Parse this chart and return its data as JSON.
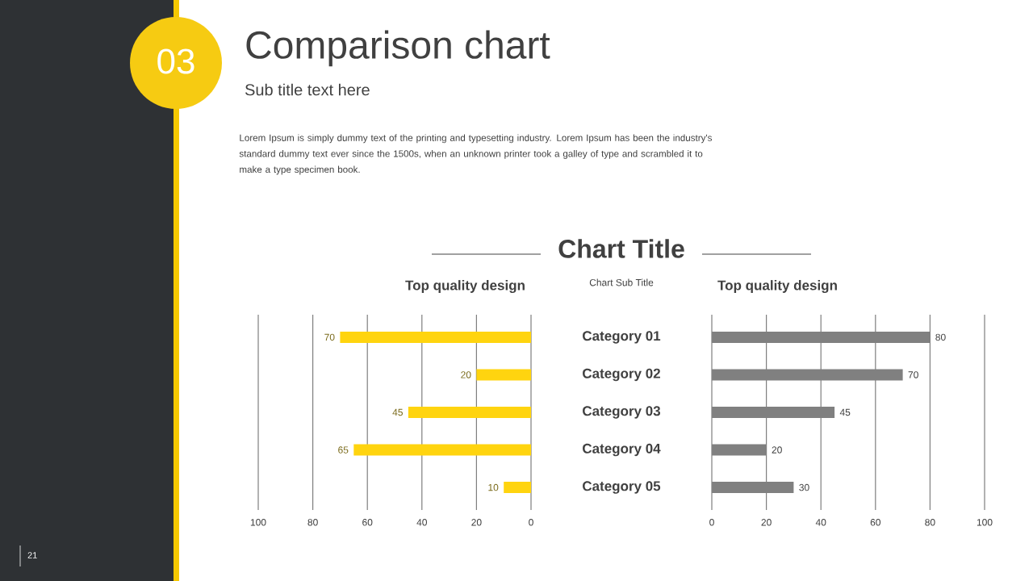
{
  "chart_data": [
    {
      "type": "other",
      "title": "Comparison chart",
      "subtitle": "Sub title text here",
      "annotations": [
        "03",
        "Lorem Ipsum is simply dummy text of the printing and typesetting industry. Lorem Ipsum has been the industry's standard dummy text ever since the 1500s, when an unknown printer took a galley of type and scrambled it to make a type specimen book.",
        "Chart Title",
        "Chart Sub Title",
        "21"
      ]
    },
    {
      "type": "bar",
      "orientation": "horizontal",
      "title": "Top quality design",
      "values": [
        70,
        20,
        45,
        65,
        10
      ],
      "color": "#ffd40f",
      "xlim": [
        100,
        0
      ],
      "xticks": [
        100,
        80,
        60,
        40,
        20,
        0
      ],
      "grid": "x",
      "data_labels": true,
      "tick_labels": "x"
    },
    {
      "type": "bar",
      "orientation": "horizontal",
      "title": "Top quality design",
      "categories": [
        "Category 01",
        "Category 02",
        "Category 03",
        "Category 04",
        "Category 05"
      ],
      "values": [
        80,
        70,
        45,
        20,
        30
      ],
      "color": "#808080",
      "xlim": [
        0,
        100
      ],
      "xticks": [
        0,
        20,
        40,
        60,
        80,
        100
      ],
      "grid": "x",
      "data_labels": true
    }
  ]
}
